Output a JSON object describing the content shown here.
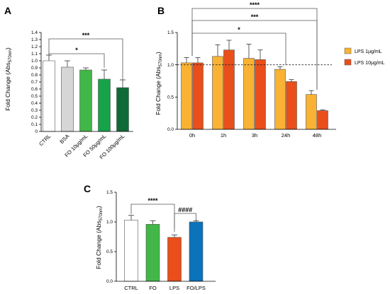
{
  "panels": {
    "a": "A",
    "b": "B",
    "c": "C"
  },
  "ylabel_main": "Fold Change (Abs",
  "ylabel_sub": "570nm",
  "ylabel_close": ")",
  "chart_data": [
    {
      "panel": "A",
      "type": "bar",
      "categories": [
        "CTRL",
        "BSA",
        "FO 10µg/mL",
        "FO 50µg/mL",
        "FO 100µg/mL"
      ],
      "values": [
        1.0,
        0.91,
        0.87,
        0.74,
        0.62
      ],
      "errors": [
        0.08,
        0.09,
        0.03,
        0.13,
        0.11
      ],
      "colors": [
        "#ffffff",
        "#d6d6d6",
        "#43b649",
        "#16a34a",
        "#0f6b35"
      ],
      "ylim": [
        0,
        1.4
      ],
      "yticks": [
        "0",
        "0.1",
        "0.2",
        "0.3",
        "0.4",
        "0.5",
        "0.6",
        "0.7",
        "0.8",
        "0.9",
        "1.0",
        "1.1",
        "1.2",
        "1.3",
        "1.4"
      ],
      "annotations": [
        {
          "from": 0,
          "to": 3,
          "label": "*"
        },
        {
          "from": 0,
          "to": 4,
          "label": "***"
        }
      ]
    },
    {
      "panel": "B",
      "type": "bar",
      "categories": [
        "0h",
        "1h",
        "3h",
        "24h",
        "48h"
      ],
      "series": [
        {
          "name": "LPS 1µg/mL",
          "color": "#f9b233",
          "values": [
            1.03,
            1.13,
            1.1,
            0.93,
            0.54
          ],
          "errors": [
            0.08,
            0.18,
            0.22,
            0.04,
            0.06
          ]
        },
        {
          "name": "LPS 10µg/mL",
          "color": "#e94e1b",
          "values": [
            1.03,
            1.23,
            1.08,
            0.74,
            0.29
          ],
          "errors": [
            0.08,
            0.15,
            0.15,
            0.03,
            0.01
          ]
        }
      ],
      "ylim": [
        0,
        1.5
      ],
      "yticks": [
        "0.0",
        "0.5",
        "1.0",
        "1.5"
      ],
      "reference_line": 1.0,
      "legend_position": "right",
      "annotations": [
        {
          "from": 0,
          "to": 3,
          "label": "*"
        },
        {
          "from": 0,
          "to": 4,
          "label": "***"
        },
        {
          "from": 0,
          "to": 4,
          "label": "****"
        }
      ]
    },
    {
      "panel": "C",
      "type": "bar",
      "categories": [
        "CTRL",
        "FO",
        "LPS",
        "FO/LPS"
      ],
      "values": [
        1.03,
        0.96,
        0.74,
        1.0
      ],
      "errors": [
        0.08,
        0.06,
        0.04,
        0.02
      ],
      "colors": [
        "#ffffff",
        "#43b649",
        "#e94e1b",
        "#0b72bc"
      ],
      "ylim": [
        0,
        1.5
      ],
      "yticks": [
        "0.0",
        "0.5",
        "1.0",
        "1.5"
      ],
      "annotations": [
        {
          "from": 0,
          "to": 2,
          "label": "****"
        },
        {
          "from": 2,
          "to": 3,
          "label": "####"
        }
      ]
    }
  ]
}
